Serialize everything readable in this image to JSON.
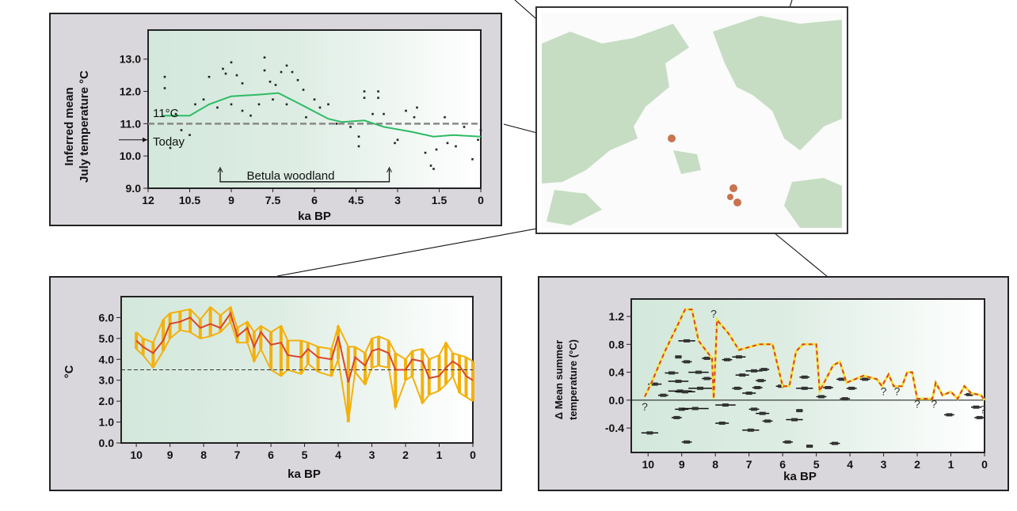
{
  "colors": {
    "panel_bg": "#d9d6dc",
    "plot_green": "#d3e8dc",
    "land": "#c4dcc0",
    "curve_green": "#2dbb63",
    "orange": "#f2b10e",
    "red": "#d9452a",
    "yellow": "#f5e23a"
  },
  "chart_data": [
    {
      "type": "scatter",
      "xlabel": "ka BP",
      "ylabel_lines": [
        "Inferred mean",
        "July temperature °C"
      ],
      "xlim": [
        12,
        0
      ],
      "ylim": [
        9.0,
        13.9
      ],
      "xticks": [
        12,
        10.5,
        9,
        7.5,
        6,
        4.5,
        3,
        1.5,
        0
      ],
      "xtick_labels": [
        "12",
        "10.5",
        "9",
        "7.5",
        "6",
        "4.5",
        "3",
        "1.5",
        "0"
      ],
      "yticks": [
        9.0,
        10.0,
        11.0,
        12.0,
        13.0
      ],
      "ytick_labels": [
        "9.0",
        "10.0",
        "11.0",
        "12.0",
        "13.0"
      ],
      "reference_line": {
        "y": 11.0,
        "label": "11°C"
      },
      "today": {
        "y": 10.5,
        "label": "Today"
      },
      "annotation": {
        "label": "Betula woodland",
        "x_start": 9.4,
        "x_end": 3.3,
        "y": 9.2
      },
      "smooth_curve": [
        [
          11.5,
          11.25
        ],
        [
          10.5,
          11.25
        ],
        [
          9.8,
          11.6
        ],
        [
          9,
          11.85
        ],
        [
          8,
          11.9
        ],
        [
          7.3,
          11.95
        ],
        [
          6.5,
          11.6
        ],
        [
          5.5,
          11.15
        ],
        [
          5,
          11.05
        ],
        [
          4.2,
          11.1
        ],
        [
          3.5,
          10.9
        ],
        [
          2.5,
          10.75
        ],
        [
          1.7,
          10.6
        ],
        [
          1,
          10.65
        ],
        [
          0,
          10.6
        ]
      ],
      "points": [
        [
          11.4,
          12.45
        ],
        [
          11.4,
          12.1
        ],
        [
          11.2,
          10.25
        ],
        [
          11,
          11.3
        ],
        [
          10.8,
          10.8
        ],
        [
          10.5,
          10.65
        ],
        [
          10.3,
          11.6
        ],
        [
          10.0,
          11.75
        ],
        [
          9.8,
          12.45
        ],
        [
          9.5,
          11.5
        ],
        [
          9.3,
          12.7
        ],
        [
          9.2,
          12.55
        ],
        [
          9.0,
          12.9
        ],
        [
          9.0,
          11.6
        ],
        [
          8.8,
          12.5
        ],
        [
          8.6,
          12.25
        ],
        [
          8.6,
          11.4
        ],
        [
          8.3,
          11.25
        ],
        [
          8.0,
          11.6
        ],
        [
          7.8,
          13.05
        ],
        [
          7.8,
          12.65
        ],
        [
          7.6,
          12.3
        ],
        [
          7.5,
          11.75
        ],
        [
          7.4,
          12.2
        ],
        [
          7.2,
          12.6
        ],
        [
          7.0,
          12.8
        ],
        [
          7.0,
          11.6
        ],
        [
          6.8,
          12.6
        ],
        [
          6.6,
          12.35
        ],
        [
          6.4,
          12.05
        ],
        [
          6.3,
          11.2
        ],
        [
          6.0,
          11.75
        ],
        [
          5.8,
          11.5
        ],
        [
          5.5,
          11.6
        ],
        [
          5.2,
          11.0
        ],
        [
          4.7,
          10.9
        ],
        [
          4.4,
          10.3
        ],
        [
          4.4,
          10.6
        ],
        [
          4.2,
          12.0
        ],
        [
          4.2,
          11.8
        ],
        [
          3.9,
          11.3
        ],
        [
          3.7,
          12.0
        ],
        [
          3.7,
          11.8
        ],
        [
          3.5,
          11.3
        ],
        [
          3.1,
          10.4
        ],
        [
          3.0,
          10.5
        ],
        [
          2.7,
          11.4
        ],
        [
          2.4,
          11.2
        ],
        [
          2.3,
          11.5
        ],
        [
          2.0,
          10.1
        ],
        [
          1.8,
          9.7
        ],
        [
          1.7,
          9.6
        ],
        [
          1.6,
          10.2
        ],
        [
          1.3,
          11.2
        ],
        [
          1.2,
          10.4
        ],
        [
          0.9,
          10.3
        ],
        [
          0.6,
          10.9
        ],
        [
          0.3,
          9.9
        ],
        [
          0.1,
          10.5
        ],
        [
          0.0,
          10.8
        ]
      ]
    },
    {
      "type": "line",
      "xlabel": "ka BP",
      "ylabel": "°C",
      "xlim": [
        10.45,
        0
      ],
      "ylim": [
        0,
        7.0
      ],
      "xticks": [
        10,
        9,
        8,
        7,
        6,
        5,
        4,
        3,
        2,
        1,
        0
      ],
      "xtick_labels": [
        "10",
        "9",
        "8",
        "7",
        "6",
        "5",
        "4",
        "3",
        "2",
        "1",
        "0"
      ],
      "yticks": [
        0,
        1,
        2,
        3,
        4,
        5,
        6
      ],
      "ytick_labels": [
        "0.0",
        "1.0",
        "2.0",
        "3.0",
        "4.0",
        "5.0",
        "6.0"
      ],
      "reference_line": {
        "y": 3.5
      },
      "smooth_series": [
        [
          10,
          4.9
        ],
        [
          9.8,
          4.6
        ],
        [
          9.5,
          4.3
        ],
        [
          9.2,
          4.9
        ],
        [
          9,
          5.7
        ],
        [
          8.7,
          5.8
        ],
        [
          8.4,
          6.0
        ],
        [
          8.1,
          5.5
        ],
        [
          7.8,
          5.7
        ],
        [
          7.5,
          5.5
        ],
        [
          7.2,
          6.2
        ],
        [
          7,
          5.1
        ],
        [
          6.7,
          5.5
        ],
        [
          6.5,
          4.6
        ],
        [
          6.3,
          5.3
        ],
        [
          6,
          4.7
        ],
        [
          5.7,
          4.8
        ],
        [
          5.5,
          4.2
        ],
        [
          5.1,
          4.1
        ],
        [
          4.9,
          4.5
        ],
        [
          4.6,
          4.1
        ],
        [
          4.2,
          4.0
        ],
        [
          4.0,
          5.1
        ],
        [
          3.7,
          2.9
        ],
        [
          3.5,
          4.1
        ],
        [
          3.2,
          3.7
        ],
        [
          3.0,
          4.4
        ],
        [
          2.8,
          4.5
        ],
        [
          2.5,
          4.3
        ],
        [
          2.3,
          3.5
        ],
        [
          2,
          3.5
        ],
        [
          1.8,
          4.0
        ],
        [
          1.5,
          3.9
        ],
        [
          1.3,
          3.1
        ],
        [
          1.0,
          3.2
        ],
        [
          0.8,
          3.6
        ],
        [
          0.6,
          3.9
        ],
        [
          0.4,
          3.7
        ],
        [
          0.2,
          3.2
        ],
        [
          0,
          3.0
        ]
      ],
      "raw_range": [
        [
          10,
          4.5,
          5.3
        ],
        [
          9.8,
          4.2,
          5.0
        ],
        [
          9.5,
          3.6,
          4.8
        ],
        [
          9.2,
          4.4,
          5.9
        ],
        [
          9,
          5.0,
          6.2
        ],
        [
          8.7,
          5.4,
          6.3
        ],
        [
          8.4,
          5.3,
          6.4
        ],
        [
          8.1,
          5.0,
          5.9
        ],
        [
          7.8,
          5.1,
          6.5
        ],
        [
          7.5,
          5.3,
          6.1
        ],
        [
          7.2,
          5.8,
          6.5
        ],
        [
          7,
          4.8,
          5.5
        ],
        [
          6.7,
          4.8,
          5.8
        ],
        [
          6.5,
          3.9,
          5.3
        ],
        [
          6.3,
          4.5,
          5.6
        ],
        [
          6,
          3.5,
          5.3
        ],
        [
          5.7,
          3.2,
          5.6
        ],
        [
          5.5,
          3.5,
          4.9
        ],
        [
          5.1,
          3.3,
          4.9
        ],
        [
          4.9,
          3.8,
          4.8
        ],
        [
          4.6,
          3.4,
          4.6
        ],
        [
          4.2,
          3.2,
          4.5
        ],
        [
          4.0,
          4.0,
          5.6
        ],
        [
          3.7,
          1.0,
          4.6
        ],
        [
          3.5,
          3.4,
          4.6
        ],
        [
          3.2,
          2.8,
          4.3
        ],
        [
          3.0,
          3.6,
          5.0
        ],
        [
          2.8,
          3.7,
          5.1
        ],
        [
          2.5,
          3.6,
          4.9
        ],
        [
          2.3,
          1.7,
          4.3
        ],
        [
          2,
          3.0,
          4.0
        ],
        [
          1.8,
          3.2,
          4.4
        ],
        [
          1.5,
          1.9,
          4.5
        ],
        [
          1.3,
          2.3,
          4.0
        ],
        [
          1.0,
          2.5,
          4.2
        ],
        [
          0.8,
          2.8,
          4.8
        ],
        [
          0.6,
          3.2,
          4.3
        ],
        [
          0.4,
          2.4,
          4.2
        ],
        [
          0.2,
          2.2,
          4.1
        ],
        [
          0,
          2.0,
          3.9
        ]
      ]
    },
    {
      "type": "line",
      "xlabel": "ka BP",
      "ylabel_lines": [
        "Δ Mean summer",
        "temperature (°C)"
      ],
      "xlim": [
        10.5,
        0
      ],
      "ylim": [
        -0.75,
        1.45
      ],
      "xticks": [
        10,
        9,
        8,
        7,
        6,
        5,
        4,
        3,
        2,
        1,
        0
      ],
      "xtick_labels": [
        "10",
        "9",
        "8",
        "7",
        "6",
        "5",
        "4",
        "3",
        "2",
        "1",
        "0"
      ],
      "yticks": [
        -0.4,
        0.0,
        0.4,
        0.8,
        1.2
      ],
      "ytick_labels": [
        "-0.4",
        "0.0",
        "0.4",
        "0.8",
        "1.2"
      ],
      "reference_line": {
        "y": 0
      },
      "envelope": [
        [
          10.1,
          0.05
        ],
        [
          9.9,
          0.25
        ],
        [
          9.5,
          0.7
        ],
        [
          9.1,
          1.1
        ],
        [
          8.9,
          1.3
        ],
        [
          8.7,
          1.3
        ],
        [
          8.5,
          0.85
        ],
        [
          8.1,
          0.6
        ],
        [
          8.05,
          0.02
        ],
        [
          7.95,
          1.15
        ],
        [
          7.6,
          0.95
        ],
        [
          7.3,
          0.72
        ],
        [
          6.7,
          0.8
        ],
        [
          6.3,
          0.8
        ],
        [
          6.0,
          0.2
        ],
        [
          5.8,
          0.2
        ],
        [
          5.6,
          0.7
        ],
        [
          5.4,
          0.8
        ],
        [
          5.0,
          0.8
        ],
        [
          4.9,
          0.13
        ],
        [
          4.5,
          0.5
        ],
        [
          4.3,
          0.55
        ],
        [
          4.1,
          0.25
        ],
        [
          3.6,
          0.35
        ],
        [
          3.2,
          0.3
        ],
        [
          3.05,
          0.2
        ],
        [
          2.85,
          0.37
        ],
        [
          2.7,
          0.2
        ],
        [
          2.45,
          0.2
        ],
        [
          2.3,
          0.4
        ],
        [
          2.15,
          0.4
        ],
        [
          2.0,
          0.02
        ],
        [
          1.55,
          0.02
        ],
        [
          1.45,
          0.25
        ],
        [
          1.25,
          0.07
        ],
        [
          1.0,
          0.12
        ],
        [
          0.8,
          0.02
        ],
        [
          0.6,
          0.2
        ],
        [
          0.4,
          0.1
        ],
        [
          0.1,
          0.07
        ],
        [
          0,
          0.0
        ]
      ],
      "uncertain_marker": "?",
      "uncertain_points": [
        [
          10.1,
          -0.08
        ],
        [
          8.05,
          1.25
        ],
        [
          3.0,
          0.14
        ],
        [
          2.6,
          0.14
        ],
        [
          2.0,
          -0.04
        ],
        [
          1.5,
          -0.04
        ],
        [
          0.05,
          -0.12
        ]
      ],
      "estimates": [
        [
          10.0,
          9.6,
          0.23
        ],
        [
          10.2,
          9.7,
          -0.47
        ],
        [
          9.7,
          9.4,
          0.07
        ],
        [
          9.5,
          9.1,
          0.39
        ],
        [
          9.4,
          8.8,
          0.27
        ],
        [
          9.4,
          8.7,
          0.13
        ],
        [
          9.2,
          8.6,
          0.12
        ],
        [
          9.1,
          8.6,
          0.85
        ],
        [
          9.2,
          8.8,
          -0.13
        ],
        [
          9.2,
          9.0,
          0.62
        ],
        [
          9.0,
          8.7,
          0.55
        ],
        [
          9.0,
          8.2,
          -0.12
        ],
        [
          8.8,
          8.2,
          0.4
        ],
        [
          8.8,
          8.1,
          0.17
        ],
        [
          9.0,
          8.7,
          -0.6
        ],
        [
          9.3,
          9.0,
          -0.25
        ],
        [
          8.4,
          8.1,
          0.31
        ],
        [
          8.4,
          8.1,
          0.6
        ],
        [
          8.0,
          7.4,
          -0.07
        ],
        [
          8.0,
          7.6,
          -0.33
        ],
        [
          7.8,
          7.5,
          0.58
        ],
        [
          7.5,
          7.2,
          0.17
        ],
        [
          7.5,
          7.1,
          0.62
        ],
        [
          7.4,
          7.0,
          0.36
        ],
        [
          7.2,
          6.8,
          0.1
        ],
        [
          7.1,
          6.6,
          0.42
        ],
        [
          7.2,
          6.7,
          -0.43
        ],
        [
          7.0,
          6.7,
          -0.13
        ],
        [
          6.9,
          6.6,
          0.18
        ],
        [
          6.8,
          6.4,
          -0.19
        ],
        [
          6.8,
          6.5,
          0.28
        ],
        [
          6.7,
          6.4,
          0.44
        ],
        [
          6.6,
          6.3,
          -0.3
        ],
        [
          6.2,
          5.9,
          0.2
        ],
        [
          6.0,
          5.7,
          -0.6
        ],
        [
          5.9,
          5.4,
          -0.28
        ],
        [
          5.6,
          5.4,
          -0.15
        ],
        [
          5.5,
          5.2,
          0.33
        ],
        [
          5.6,
          5.1,
          0.17
        ],
        [
          5.3,
          5.1,
          -0.66
        ],
        [
          5.0,
          4.7,
          0.05
        ],
        [
          4.8,
          4.5,
          0.18
        ],
        [
          4.6,
          4.3,
          -0.62
        ],
        [
          4.4,
          4.1,
          0.3
        ],
        [
          4.3,
          4.0,
          0.02
        ],
        [
          4.1,
          3.8,
          0.17
        ],
        [
          3.7,
          3.4,
          0.3
        ],
        [
          1.2,
          0.9,
          -0.21
        ],
        [
          0.6,
          0.3,
          0.08
        ],
        [
          0.4,
          0.1,
          -0.1
        ],
        [
          0.3,
          0.0,
          -0.25
        ]
      ]
    }
  ],
  "map": {
    "site_markers": [
      "site-north",
      "site-south-1",
      "site-south-2"
    ]
  }
}
